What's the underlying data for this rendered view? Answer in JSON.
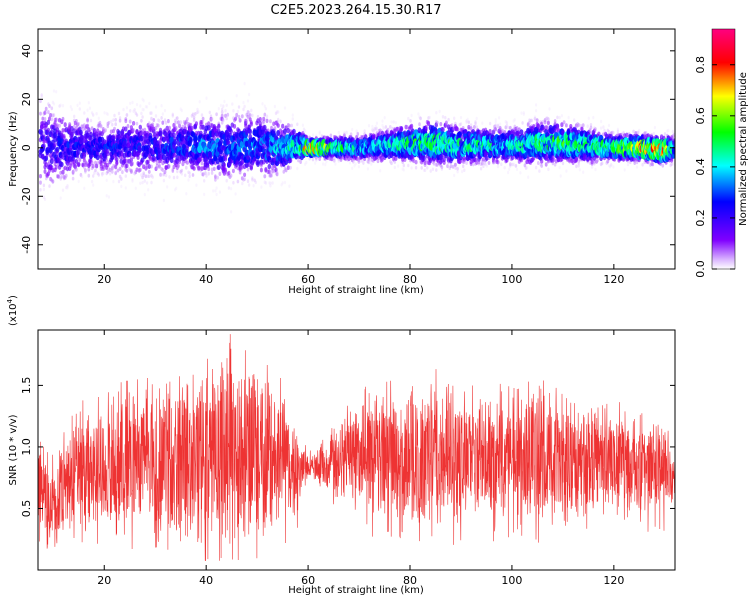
{
  "figure": {
    "title": "C2E5.2023.264.15.30.R17"
  },
  "chart_data": [
    {
      "type": "heatmap",
      "title": "C2E5.2023.264.15.30.R17",
      "xlabel": "Height of straight line (km)",
      "ylabel": "Frequency (Hz)",
      "xlim": [
        7,
        132
      ],
      "ylim": [
        -50,
        49
      ],
      "xticks": [
        20,
        40,
        60,
        80,
        100,
        120
      ],
      "yticks": [
        -40,
        -20,
        0,
        20,
        40
      ],
      "grid": false,
      "colorbar": {
        "label": "Normalized spectral amplitude",
        "range": [
          0,
          0.94
        ],
        "ticks": [
          0.0,
          0.2,
          0.4,
          0.6,
          0.8
        ],
        "tick_labels": [
          "0.0",
          "0.2",
          "0.4",
          "0.6",
          "0.8"
        ],
        "colormap": [
          "#ffffff",
          "#d9b3ff",
          "#8000ff",
          "#0000ff",
          "#00ffff",
          "#00ff00",
          "#ffff00",
          "#ff0000",
          "#ff0080"
        ]
      },
      "envelope": {
        "x": [
          8,
          10,
          15,
          20,
          25,
          30,
          35,
          40,
          45,
          50,
          55,
          58,
          60,
          65,
          70,
          75,
          80,
          85,
          90,
          95,
          100,
          105,
          110,
          115,
          120,
          125,
          130,
          132
        ],
        "center_hz": [
          2,
          0,
          1,
          0,
          1,
          0,
          1,
          1,
          0,
          1,
          0,
          1,
          0,
          0,
          0,
          1,
          2,
          2,
          1,
          1,
          1,
          2,
          2,
          1,
          0,
          0,
          -1,
          0
        ],
        "halfwidth_hz": [
          22,
          18,
          14,
          12,
          14,
          14,
          12,
          14,
          16,
          15,
          12,
          8,
          4,
          5,
          6,
          7,
          9,
          10,
          9,
          8,
          8,
          10,
          9,
          8,
          6,
          6,
          6,
          6
        ],
        "peak_amplitude": [
          0.25,
          0.3,
          0.3,
          0.3,
          0.3,
          0.3,
          0.35,
          0.4,
          0.35,
          0.4,
          0.45,
          0.55,
          0.9,
          0.6,
          0.45,
          0.5,
          0.55,
          0.6,
          0.55,
          0.5,
          0.5,
          0.55,
          0.6,
          0.55,
          0.6,
          0.8,
          0.9,
          0.5
        ]
      }
    },
    {
      "type": "line",
      "xlabel": "Height of straight line (km)",
      "ylabel": "SNR (10 * v/v)",
      "multiplier_label": "(x10",
      "multiplier_exp": "4",
      "multiplier_close": ")",
      "xlim": [
        7,
        132
      ],
      "ylim": [
        0,
        1.95
      ],
      "xticks": [
        20,
        40,
        60,
        80,
        100,
        120
      ],
      "yticks": [
        0.5,
        1.0,
        1.5
      ],
      "ytick_labels": [
        "0.5",
        "1.0",
        "1.5"
      ],
      "grid": false,
      "series": [
        {
          "color": "#ee3333",
          "envelope_x": [
            7,
            8,
            9,
            10,
            12,
            15,
            20,
            25,
            30,
            35,
            40,
            45,
            50,
            55,
            58,
            60,
            65,
            70,
            75,
            80,
            85,
            90,
            95,
            100,
            105,
            110,
            115,
            120,
            125,
            130,
            132
          ],
          "envelope_lo": [
            0.2,
            0.3,
            0.2,
            0.1,
            0.2,
            0.3,
            0.25,
            0.2,
            0.2,
            0.15,
            0.1,
            0.1,
            0.1,
            0.2,
            0.4,
            0.75,
            0.55,
            0.4,
            0.35,
            0.3,
            0.3,
            0.25,
            0.3,
            0.35,
            0.3,
            0.3,
            0.35,
            0.4,
            0.4,
            0.45,
            0.5
          ],
          "envelope_hi": [
            1.2,
            1.1,
            1.0,
            0.9,
            1.1,
            1.35,
            1.4,
            1.55,
            1.6,
            1.65,
            1.7,
            1.9,
            1.75,
            1.55,
            1.2,
            0.95,
            1.15,
            1.45,
            1.55,
            1.55,
            1.6,
            1.5,
            1.5,
            1.45,
            1.55,
            1.4,
            1.4,
            1.35,
            1.25,
            1.2,
            1.1
          ]
        }
      ]
    }
  ]
}
